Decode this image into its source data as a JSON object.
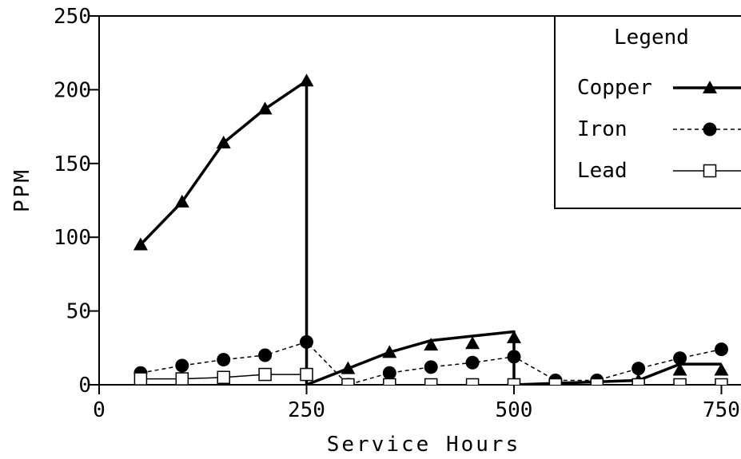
{
  "chart_data": {
    "type": "line",
    "title": "",
    "xlabel": "Service Hours",
    "ylabel": "PPM",
    "xlim": [
      0,
      790
    ],
    "ylim": [
      0,
      250
    ],
    "xticks": [
      0,
      250,
      500,
      750
    ],
    "yticks": [
      0,
      50,
      100,
      150,
      200,
      250
    ],
    "grid": false,
    "legend": {
      "title": "Legend",
      "placement": "top-right",
      "entries": [
        "Copper",
        "Iron",
        "Lead"
      ]
    },
    "series": [
      {
        "name": "Copper",
        "color": "#000000",
        "line_style": "solid-thick",
        "marker": "filled-triangle",
        "points": [
          [
            50,
            95
          ],
          [
            100,
            124
          ],
          [
            150,
            164
          ],
          [
            200,
            187
          ],
          [
            250,
            206
          ]
        ],
        "line": [
          [
            50,
            95
          ],
          [
            100,
            124
          ],
          [
            150,
            164
          ],
          [
            200,
            187
          ],
          [
            250,
            206
          ],
          [
            250,
            0
          ],
          [
            350,
            22
          ],
          [
            400,
            30
          ],
          [
            450,
            33
          ],
          [
            500,
            36
          ],
          [
            500,
            0
          ],
          [
            650,
            3
          ],
          [
            700,
            14
          ],
          [
            750,
            14
          ]
        ],
        "markers_extra": [
          [
            300,
            11
          ],
          [
            350,
            22
          ],
          [
            400,
            27
          ],
          [
            450,
            28
          ],
          [
            500,
            32
          ],
          [
            550,
            0
          ],
          [
            600,
            0
          ],
          [
            650,
            3
          ],
          [
            700,
            10
          ],
          [
            750,
            10
          ]
        ]
      },
      {
        "name": "Iron",
        "color": "#000000",
        "line_style": "dashed",
        "marker": "filled-circle",
        "points": [
          [
            50,
            8
          ],
          [
            100,
            13
          ],
          [
            150,
            17
          ],
          [
            200,
            20
          ],
          [
            250,
            29
          ],
          [
            300,
            0
          ],
          [
            350,
            8
          ],
          [
            400,
            12
          ],
          [
            450,
            15
          ],
          [
            500,
            19
          ],
          [
            550,
            3
          ],
          [
            600,
            3
          ],
          [
            650,
            11
          ],
          [
            700,
            18
          ],
          [
            750,
            24
          ]
        ],
        "line": [
          [
            50,
            8
          ],
          [
            100,
            13
          ],
          [
            150,
            17
          ],
          [
            200,
            20
          ],
          [
            250,
            29
          ],
          [
            300,
            0
          ],
          [
            350,
            8
          ],
          [
            400,
            12
          ],
          [
            450,
            15
          ],
          [
            500,
            19
          ],
          [
            550,
            3
          ],
          [
            600,
            3
          ],
          [
            650,
            11
          ],
          [
            700,
            18
          ],
          [
            750,
            24
          ]
        ]
      },
      {
        "name": "Lead",
        "color": "#000000",
        "line_style": "solid-thin",
        "marker": "open-square",
        "points": [
          [
            50,
            4
          ],
          [
            100,
            4
          ],
          [
            150,
            5
          ],
          [
            200,
            7
          ],
          [
            250,
            7
          ],
          [
            300,
            0
          ],
          [
            350,
            0
          ],
          [
            400,
            0
          ],
          [
            450,
            0
          ],
          [
            500,
            0
          ],
          [
            550,
            0
          ],
          [
            600,
            0
          ],
          [
            650,
            0
          ],
          [
            700,
            0
          ],
          [
            750,
            0
          ]
        ],
        "line": [
          [
            50,
            4
          ],
          [
            100,
            4
          ],
          [
            150,
            5
          ],
          [
            200,
            7
          ],
          [
            250,
            7
          ],
          [
            250,
            0
          ],
          [
            750,
            0
          ]
        ]
      }
    ]
  }
}
